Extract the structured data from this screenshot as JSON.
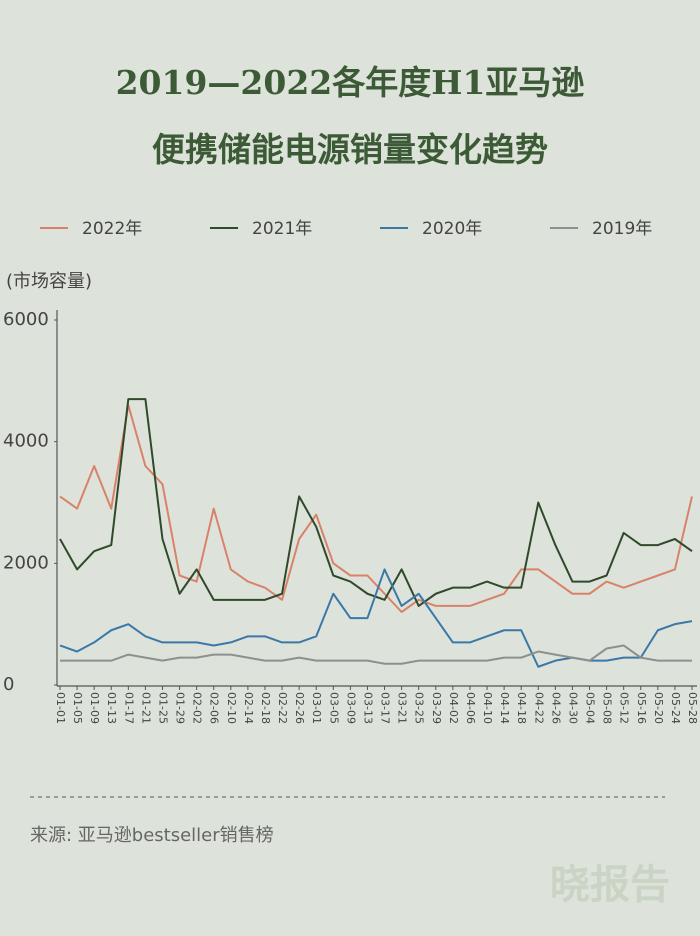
{
  "chart_data": {
    "type": "line",
    "title_lines": [
      "2019—2022各年度H1亚马逊",
      "便携储能电源销量变化趋势"
    ],
    "y_label": "(市场容量)",
    "source": "来源: 亚马逊bestseller销售榜",
    "watermark": "晓报告",
    "categories": [
      "01-01",
      "01-05",
      "01-09",
      "01-13",
      "01-17",
      "01-21",
      "01-25",
      "01-29",
      "02-02",
      "02-06",
      "02-10",
      "02-14",
      "02-18",
      "02-22",
      "02-26",
      "03-01",
      "03-05",
      "03-09",
      "03-13",
      "03-17",
      "03-21",
      "03-25",
      "03-29",
      "04-02",
      "04-06",
      "04-10",
      "04-14",
      "04-18",
      "04-22",
      "04-26",
      "04-30",
      "05-04",
      "05-08",
      "05-12",
      "05-16",
      "05-20",
      "05-24",
      "05-28"
    ],
    "series": [
      {
        "name": "2022年",
        "color": "#d9826a",
        "values": [
          3100,
          2900,
          3600,
          2900,
          4600,
          3600,
          3300,
          1800,
          1700,
          2900,
          1900,
          1700,
          1600,
          1400,
          2400,
          2800,
          2000,
          1800,
          1800,
          1500,
          1200,
          1400,
          1300,
          1300,
          1300,
          1400,
          1500,
          1900,
          1900,
          1700,
          1500,
          1500,
          1700,
          1600,
          1700,
          1800,
          1900,
          3100
        ]
      },
      {
        "name": "2021年",
        "color": "#2f4a2a",
        "values": [
          2400,
          1900,
          2200,
          2300,
          4700,
          4700,
          2400,
          1500,
          1900,
          1400,
          1400,
          1400,
          1400,
          1500,
          3100,
          2600,
          1800,
          1700,
          1500,
          1400,
          1900,
          1300,
          1500,
          1600,
          1600,
          1700,
          1600,
          1600,
          3000,
          2300,
          1700,
          1700,
          1800,
          2500,
          2300,
          2300,
          2400,
          2200
        ]
      },
      {
        "name": "2020年",
        "color": "#3b78a8",
        "values": [
          650,
          550,
          700,
          900,
          1000,
          800,
          700,
          700,
          700,
          650,
          700,
          800,
          800,
          700,
          700,
          800,
          1500,
          1100,
          1100,
          1900,
          1300,
          1500,
          1100,
          700,
          700,
          800,
          900,
          900,
          300,
          400,
          450,
          400,
          400,
          450,
          450,
          900,
          1000,
          1050
        ]
      },
      {
        "name": "2019年",
        "color": "#8f8f8f",
        "values": [
          400,
          400,
          400,
          400,
          500,
          450,
          400,
          450,
          450,
          500,
          500,
          450,
          400,
          400,
          450,
          400,
          400,
          400,
          400,
          350,
          350,
          400,
          400,
          400,
          400,
          400,
          450,
          450,
          550,
          500,
          450,
          400,
          600,
          650,
          450,
          400,
          400,
          400
        ]
      }
    ],
    "ylim": [
      0,
      6000
    ],
    "yticks": [
      0,
      2000,
      4000,
      6000
    ]
  }
}
